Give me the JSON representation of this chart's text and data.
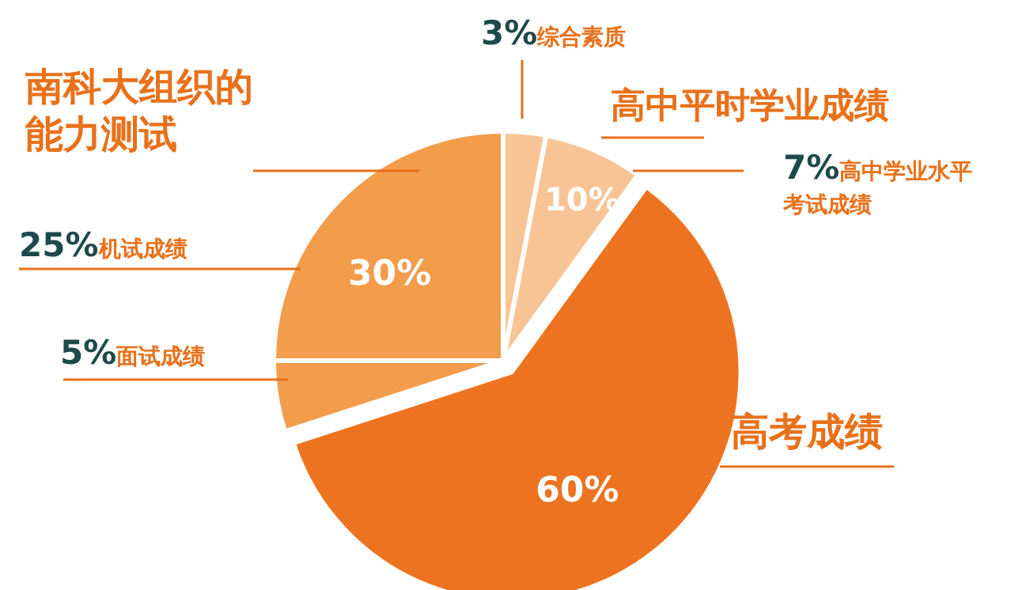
{
  "chart_data": {
    "type": "pie",
    "categories": [
      "综合素质",
      "高中学业水平考试成绩",
      "高考成绩",
      "面试成绩",
      "机试成绩"
    ],
    "values": [
      3,
      7,
      60,
      5,
      25
    ],
    "colors": [
      "#f8c496",
      "#f8c496",
      "#ed7320",
      "#f29c4c",
      "#f29c4c"
    ],
    "value_labels": [
      "3%",
      "7%",
      "60%",
      "5%",
      "25%"
    ],
    "annotations": [
      "南科大组织的能力测试",
      "30%",
      "高中平时学业成绩",
      "10%"
    ]
  }
}
